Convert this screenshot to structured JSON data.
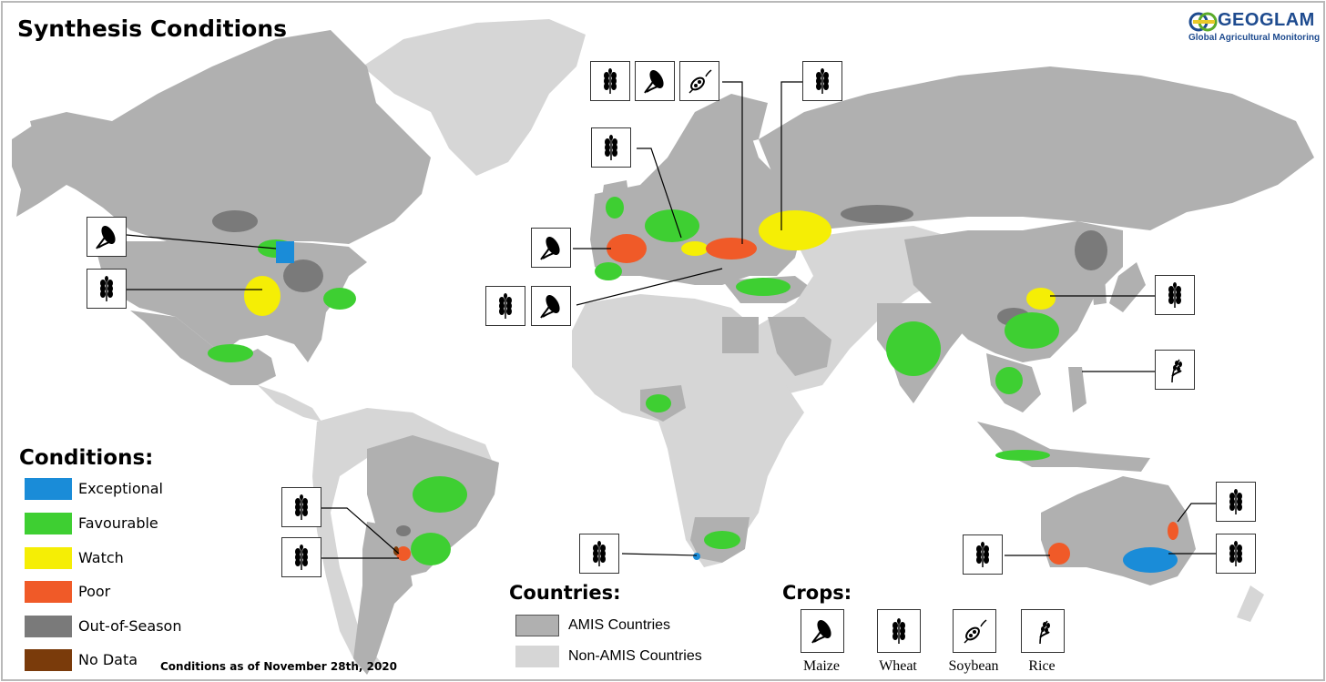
{
  "title": "Synthesis Conditions",
  "logo": {
    "word": "GEOGLAM",
    "subtitle": "Global Agricultural Monitoring"
  },
  "conditions": {
    "title": "Conditions:",
    "items": [
      {
        "label": "Exceptional",
        "color": "#1a8cd8"
      },
      {
        "label": "Favourable",
        "color": "#3ecf32"
      },
      {
        "label": "Watch",
        "color": "#f5ee05"
      },
      {
        "label": "Poor",
        "color": "#f05a28"
      },
      {
        "label": "Out-of-Season",
        "color": "#7a7a7a"
      },
      {
        "label": "No Data",
        "color": "#7a3b0b"
      }
    ]
  },
  "as_of": "Conditions as of November 28th, 2020",
  "countries": {
    "title": "Countries:",
    "items": [
      {
        "label": "AMIS Countries",
        "color": "#b0b0b0"
      },
      {
        "label": "Non-AMIS Countries",
        "color": "#d6d6d6"
      }
    ]
  },
  "crops": {
    "title": "Crops:",
    "items": [
      {
        "label": "Maize",
        "icon": "maize-icon"
      },
      {
        "label": "Wheat",
        "icon": "wheat-icon"
      },
      {
        "label": "Soybean",
        "icon": "soybean-icon"
      },
      {
        "label": "Rice",
        "icon": "rice-icon"
      }
    ]
  },
  "map_colors": {
    "ocean": "#ffffff",
    "amis": "#b0b0b0",
    "non_amis": "#d6d6d6",
    "out_of_season": "#7a7a7a",
    "border": "#ffffff"
  }
}
